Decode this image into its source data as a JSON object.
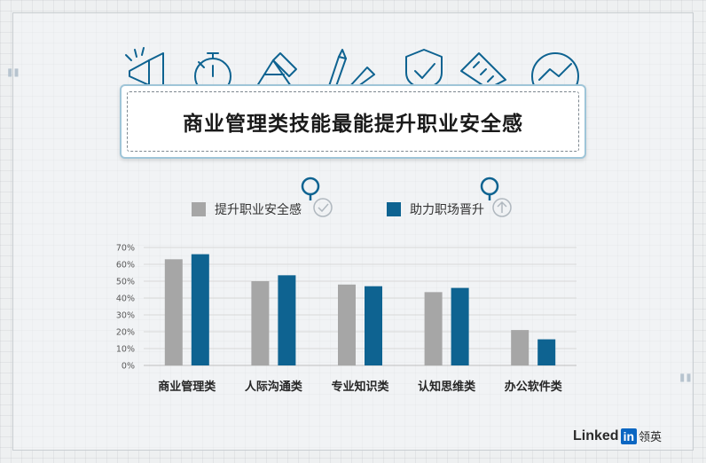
{
  "title": "商业管理类技能最能提升职业安全感",
  "brand": {
    "name_text": "Linked",
    "name_box": "in",
    "name_cn": "领英"
  },
  "colors": {
    "series_1": "#a6a6a6",
    "series_2": "#0e6391",
    "title_border": "#9fc5d8",
    "grid": "#d9d9d9"
  },
  "icons": [
    "megaphone-icon",
    "stopwatch-icon",
    "design-tools-icon",
    "pencil-ruler-icon",
    "shield-icon",
    "calculator-icon",
    "monitor-chart-icon",
    "search-check-icon",
    "search-arrow-up-icon"
  ],
  "legend": [
    {
      "label": "提升职业安全感",
      "color": "#a6a6a6"
    },
    {
      "label": "助力职场晋升",
      "color": "#0e6391"
    }
  ],
  "chart_data": {
    "type": "bar",
    "categories": [
      "商业管理类",
      "人际沟通类",
      "专业知识类",
      "认知思维类",
      "办公软件类"
    ],
    "series": [
      {
        "name": "提升职业安全感",
        "values": [
          0.63,
          0.5,
          0.48,
          0.435,
          0.21
        ]
      },
      {
        "name": "助力职场晋升",
        "values": [
          0.66,
          0.535,
          0.47,
          0.46,
          0.155
        ]
      }
    ],
    "yticks": [
      "0%",
      "10%",
      "20%",
      "30%",
      "40%",
      "50%",
      "60%",
      "70%"
    ],
    "ylim": [
      0,
      0.7
    ],
    "grid": true,
    "legend_position": "top"
  }
}
